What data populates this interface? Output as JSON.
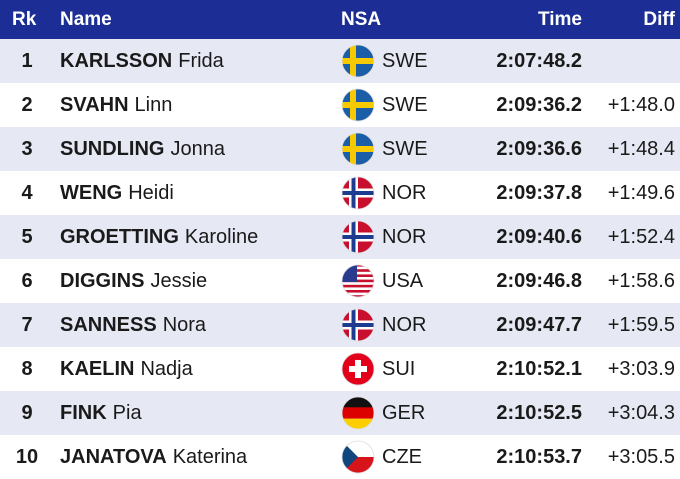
{
  "header": {
    "rank": "Rk",
    "name": "Name",
    "nsa": "NSA",
    "time": "Time",
    "diff": "Diff"
  },
  "rows": [
    {
      "rank": "1",
      "surname": "KARLSSON",
      "first": "Frida",
      "nsa": "SWE",
      "time": "2:07:48.2",
      "diff": null
    },
    {
      "rank": "2",
      "surname": "SVAHN",
      "first": "Linn",
      "nsa": "SWE",
      "time": "2:09:36.2",
      "diff": "+1:48.0"
    },
    {
      "rank": "3",
      "surname": "SUNDLING",
      "first": "Jonna",
      "nsa": "SWE",
      "time": "2:09:36.6",
      "diff": "+1:48.4"
    },
    {
      "rank": "4",
      "surname": "WENG",
      "first": "Heidi",
      "nsa": "NOR",
      "time": "2:09:37.8",
      "diff": "+1:49.6"
    },
    {
      "rank": "5",
      "surname": "GROETTING",
      "first": "Karoline",
      "nsa": "NOR",
      "time": "2:09:40.6",
      "diff": "+1:52.4"
    },
    {
      "rank": "6",
      "surname": "DIGGINS",
      "first": "Jessie",
      "nsa": "USA",
      "time": "2:09:46.8",
      "diff": "+1:58.6"
    },
    {
      "rank": "7",
      "surname": "SANNESS",
      "first": "Nora",
      "nsa": "NOR",
      "time": "2:09:47.7",
      "diff": "+1:59.5"
    },
    {
      "rank": "8",
      "surname": "KAELIN",
      "first": "Nadja",
      "nsa": "SUI",
      "time": "2:10:52.1",
      "diff": "+3:03.9"
    },
    {
      "rank": "9",
      "surname": "FINK",
      "first": "Pia",
      "nsa": "GER",
      "time": "2:10:52.5",
      "diff": "+3:04.3"
    },
    {
      "rank": "10",
      "surname": "JANATOVA",
      "first": "Katerina",
      "nsa": "CZE",
      "time": "2:10:53.7",
      "diff": "+3:05.5"
    }
  ]
}
